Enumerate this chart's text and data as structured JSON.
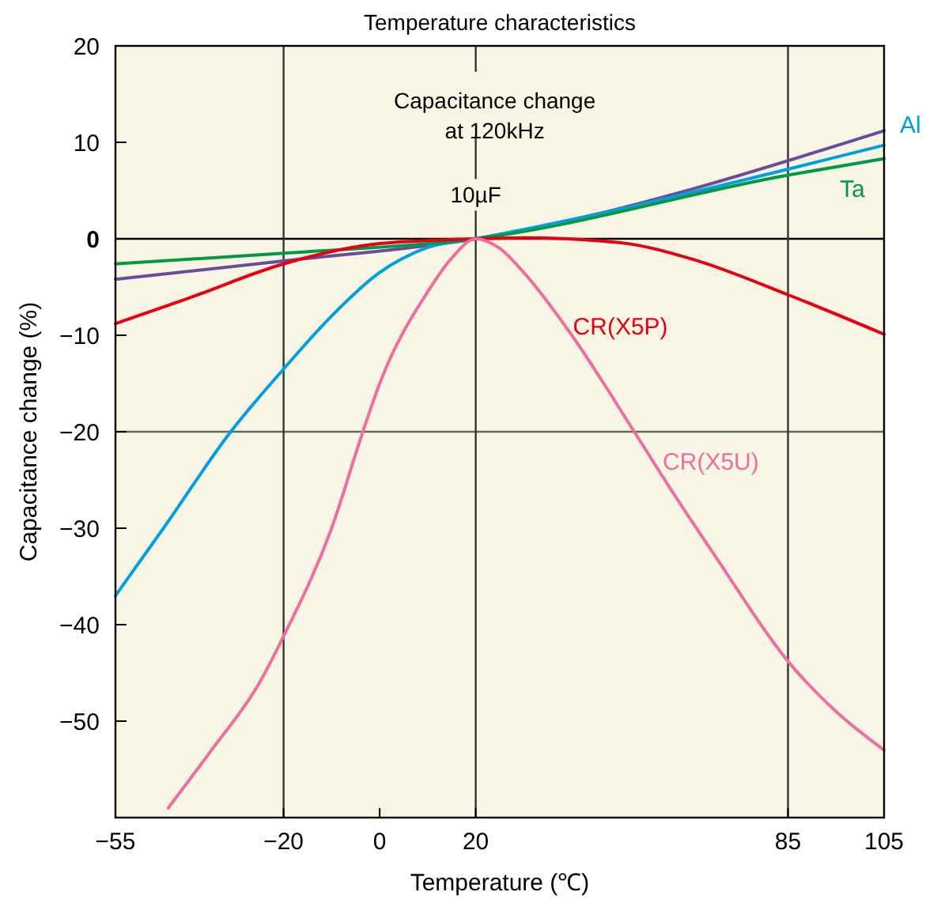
{
  "chart_data": {
    "type": "line",
    "title": "Temperature characteristics",
    "xlabel": "Temperature (℃)",
    "ylabel": "Capacitance change (%)",
    "xlim": [
      -55,
      105
    ],
    "ylim": [
      -60,
      20
    ],
    "xticks": [
      {
        "value": -55,
        "label": "−55"
      },
      {
        "value": -20,
        "label": "−20"
      },
      0,
      20,
      85,
      105
    ],
    "yticks": [
      20,
      10,
      0,
      {
        "value": -10,
        "label": "−10"
      },
      {
        "value": -20,
        "label": "−20"
      },
      {
        "value": -30,
        "label": "−30"
      },
      {
        "value": -40,
        "label": "−40"
      },
      {
        "value": -50,
        "label": "−50"
      }
    ],
    "grid": false,
    "marker": "none",
    "line_style": "solid",
    "ref_lines": [
      {
        "axis": "y",
        "value": 0,
        "color": "#000000"
      },
      {
        "axis": "y",
        "value": -20,
        "color": "#6b675c"
      },
      {
        "axis": "x",
        "value": -20,
        "color": "#333333"
      },
      {
        "axis": "x",
        "value": 20,
        "color": "#333333"
      },
      {
        "axis": "x",
        "value": 85,
        "color": "#333333"
      }
    ],
    "annotations": [
      "Capacitance change\nat 120kHz",
      "10µF"
    ],
    "series": [
      {
        "color": "#6a4c9c",
        "x": [
          -55,
          -20,
          20,
          105
        ],
        "values": [
          -4.2,
          -2.3,
          0,
          11.2
        ]
      },
      {
        "name": "Al",
        "color": "#00a0e0",
        "x": [
          -55,
          -45,
          -31,
          -20,
          -10,
          0,
          10,
          20,
          105
        ],
        "values": [
          -37,
          -30,
          -20,
          -13.5,
          -8,
          -3.5,
          -0.9,
          0,
          9.7
        ]
      },
      {
        "name": "Ta",
        "color": "#009a44",
        "x": [
          -55,
          -20,
          20,
          85,
          105
        ],
        "values": [
          -2.6,
          -1.5,
          0,
          6.6,
          8.3
        ]
      },
      {
        "name": "CR(X5P)",
        "color": "#e60012",
        "x": [
          -55,
          -40,
          -20,
          0,
          20,
          30,
          50,
          65,
          85,
          105
        ],
        "values": [
          -8.8,
          -6.2,
          -2.6,
          -0.5,
          0,
          0.1,
          -0.4,
          -2.1,
          -5.8,
          -9.9
        ]
      },
      {
        "name": "CR(X5U)",
        "color": "#ec6fa0",
        "x": [
          -44,
          -35,
          -25,
          -20,
          -10,
          -3.5,
          0,
          10,
          15,
          20,
          25,
          30,
          40,
          53,
          60,
          70,
          85,
          95,
          105
        ],
        "values": [
          -59,
          -53,
          -46,
          -41.2,
          -30,
          -20,
          -15,
          -5.5,
          -2,
          0,
          -1,
          -3.5,
          -10,
          -20,
          -25.5,
          -33,
          -43.8,
          -49,
          -53
        ]
      }
    ]
  }
}
